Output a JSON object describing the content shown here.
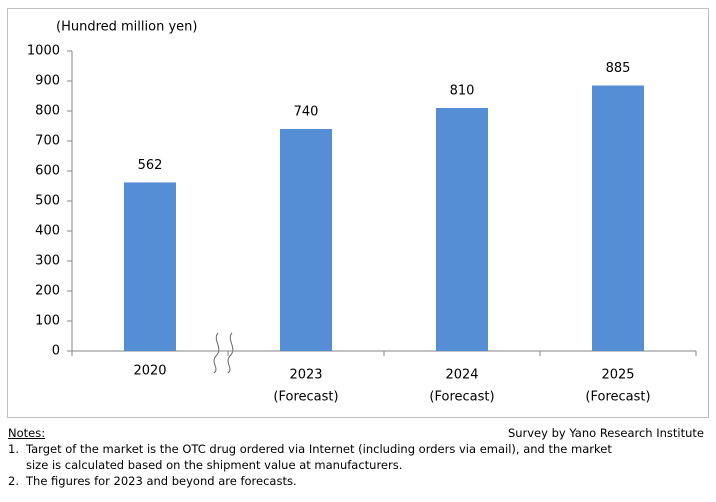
{
  "chart_data": {
    "type": "bar",
    "y_label": "(Hundred million yen)",
    "categories": [
      [
        "2020"
      ],
      [
        "2023",
        "(Forecast)"
      ],
      [
        "2024",
        "(Forecast)"
      ],
      [
        "2025",
        "(Forecast)"
      ]
    ],
    "values": [
      562,
      740,
      810,
      885
    ],
    "color": "#558ed5",
    "ylim": [
      0,
      1000
    ],
    "yticks": [
      0,
      100,
      200,
      300,
      400,
      500,
      600,
      700,
      800,
      900,
      1000
    ],
    "grid": false
  },
  "notes": {
    "heading": "Notes:",
    "source": "Survey by Yano Research Institute",
    "items": [
      {
        "number": "1.",
        "lines": [
          "Target of the market is the OTC drug ordered via Internet (including orders via email), and the market",
          "size is calculated based on the shipment value at manufacturers."
        ]
      },
      {
        "number": "2.",
        "lines": [
          "The figures for 2023 and beyond are forecasts."
        ]
      }
    ]
  }
}
